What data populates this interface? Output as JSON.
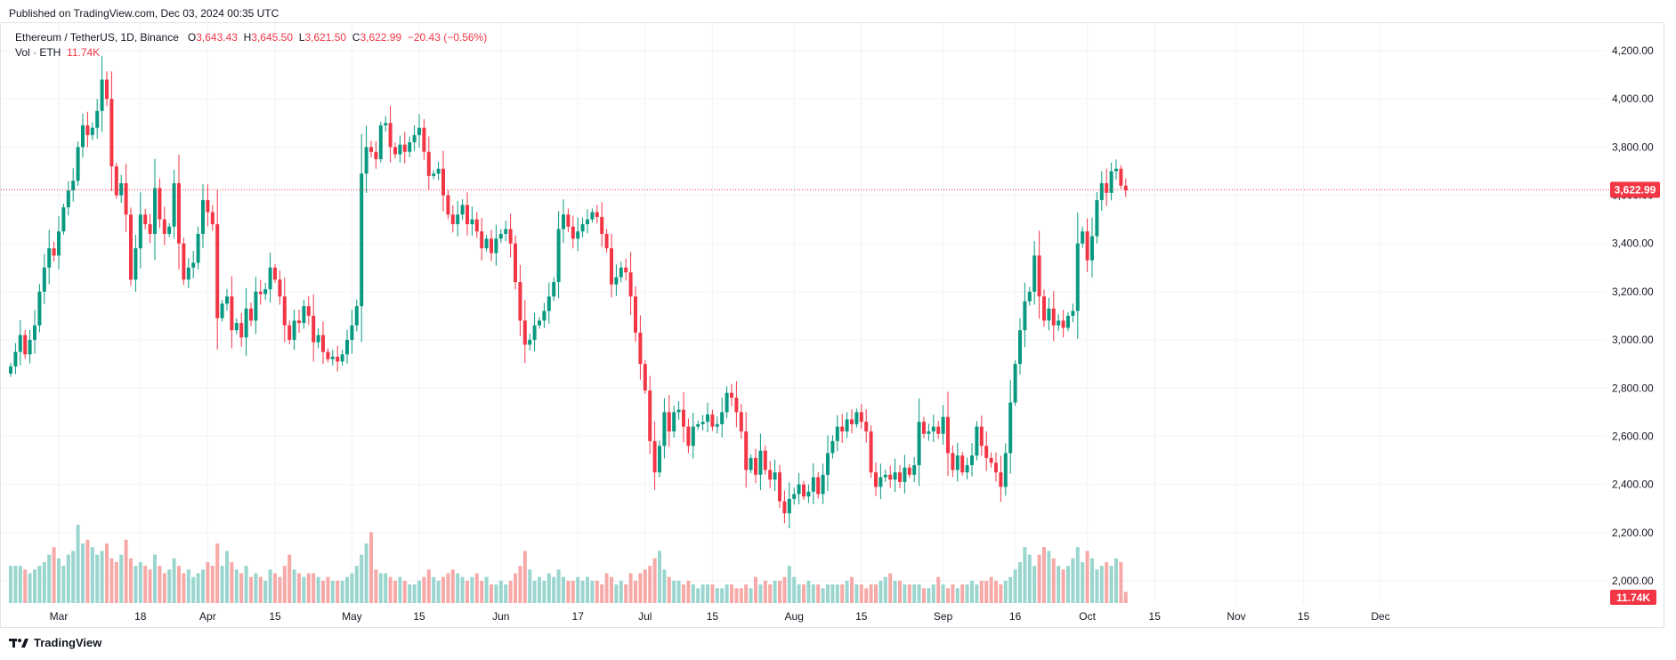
{
  "header": {
    "published": "Published on TradingView.com, Dec 03, 2024 00:35 UTC"
  },
  "legend": {
    "symbol": "Ethereum / TetherUS, 1D, Binance",
    "o_label": "O",
    "o_value": "3,643.43",
    "h_label": "H",
    "h_value": "3,645.50",
    "l_label": "L",
    "l_value": "3,621.50",
    "c_label": "C",
    "c_value": "3,622.99",
    "change": "−20.43 (−0.56%)",
    "vol_label": "Vol · ETH",
    "vol_value": "11.74K"
  },
  "footer": {
    "brand": "TradingView"
  },
  "colors": {
    "up": "#089981",
    "down": "#f23645",
    "vol_up": "#9ad6cf",
    "vol_down": "#f7a9a7",
    "grid": "#f0f3fa"
  },
  "chart_data": {
    "type": "candlestick",
    "title": "",
    "ylim": [
      2000,
      4250
    ],
    "y_ticks": [
      2000,
      2200,
      2400,
      2600,
      2800,
      3000,
      3200,
      3400,
      3600,
      3800,
      4000,
      4200
    ],
    "y_tick_labels": [
      "2,000.00",
      "2,200.00",
      "2,400.00",
      "2,600.00",
      "2,800.00",
      "3,000.00",
      "3,200.00",
      "3,400.00",
      "3,600.00",
      "3,800.00",
      "4,000.00",
      "4,200.00"
    ],
    "x_tick_labels": [
      "Mar",
      "18",
      "Apr",
      "15",
      "May",
      "15",
      "Jun",
      "17",
      "Jul",
      "15",
      "Aug",
      "15",
      "Sep",
      "16",
      "Oct",
      "15",
      "Nov",
      "15",
      "Dec"
    ],
    "x_tick_dates": [
      "2024-03-01",
      "2024-03-18",
      "2024-04-01",
      "2024-04-15",
      "2024-05-01",
      "2024-05-15",
      "2024-06-01",
      "2024-06-17",
      "2024-07-01",
      "2024-07-15",
      "2024-08-01",
      "2024-08-15",
      "2024-09-01",
      "2024-09-16",
      "2024-10-01",
      "2024-10-15",
      "2024-11-01",
      "2024-11-15",
      "2024-12-01"
    ],
    "start_date": "2024-02-20",
    "last_price": 3622.99,
    "last_price_label": "3,622.99",
    "last_volume_label": "11.74K",
    "closes": [
      2890,
      2950,
      3020,
      2940,
      3000,
      3060,
      3200,
      3300,
      3380,
      3350,
      3450,
      3550,
      3620,
      3660,
      3800,
      3890,
      3850,
      3880,
      3950,
      4080,
      4000,
      3720,
      3600,
      3650,
      3520,
      3250,
      3380,
      3520,
      3480,
      3440,
      3630,
      3500,
      3440,
      3470,
      3650,
      3400,
      3250,
      3300,
      3320,
      3440,
      3580,
      3530,
      3480,
      3090,
      3150,
      3180,
      3040,
      3070,
      3010,
      3130,
      3080,
      3200,
      3190,
      3210,
      3300,
      3250,
      3180,
      3060,
      3000,
      3080,
      3070,
      3140,
      3100,
      2990,
      3020,
      2950,
      2920,
      2930,
      2910,
      2940,
      3000,
      3060,
      3140,
      3690,
      3800,
      3780,
      3750,
      3890,
      3900,
      3800,
      3770,
      3810,
      3780,
      3820,
      3850,
      3880,
      3780,
      3680,
      3690,
      3710,
      3600,
      3520,
      3480,
      3520,
      3560,
      3480,
      3500,
      3450,
      3380,
      3420,
      3360,
      3420,
      3440,
      3460,
      3400,
      3240,
      3080,
      2980,
      3000,
      3060,
      3080,
      3120,
      3180,
      3240,
      3460,
      3520,
      3470,
      3420,
      3450,
      3480,
      3500,
      3530,
      3510,
      3440,
      3380,
      3230,
      3260,
      3300,
      3280,
      3180,
      3030,
      2900,
      2790,
      2580,
      2450,
      2560,
      2700,
      2620,
      2700,
      2710,
      2640,
      2560,
      2640,
      2650,
      2660,
      2690,
      2640,
      2650,
      2700,
      2780,
      2760,
      2700,
      2620,
      2460,
      2510,
      2440,
      2540,
      2460,
      2420,
      2450,
      2330,
      2280,
      2340,
      2360,
      2400,
      2350,
      2370,
      2430,
      2360,
      2440,
      2530,
      2580,
      2640,
      2620,
      2670,
      2650,
      2700,
      2660,
      2620,
      2450,
      2390,
      2430,
      2440,
      2420,
      2450,
      2410,
      2470,
      2440,
      2480,
      2660,
      2610,
      2620,
      2640,
      2610,
      2680,
      2530,
      2460,
      2520,
      2450,
      2480,
      2520,
      2640,
      2560,
      2510,
      2490,
      2450,
      2390,
      2530,
      2740,
      2900,
      3040,
      3160,
      3200,
      3350,
      3180,
      3080,
      3130,
      3060,
      3080,
      3050,
      3100,
      3120,
      3400,
      3450,
      3330,
      3430,
      3580,
      3650,
      3610,
      3700,
      3710,
      3640,
      3620
    ],
    "volumes": [
      1,
      1,
      1,
      0.9,
      0.8,
      0.9,
      1,
      1.1,
      1.3,
      1.5,
      1.2,
      1,
      1.3,
      1.4,
      2.1,
      1.6,
      1.7,
      1.5,
      1.3,
      1.4,
      1.6,
      1.2,
      1.1,
      1.3,
      1.7,
      1.2,
      1,
      1.1,
      1,
      0.9,
      1.3,
      1,
      0.8,
      0.9,
      1.2,
      1,
      0.8,
      0.9,
      0.7,
      0.8,
      0.9,
      1.1,
      1,
      1.6,
      1,
      1.4,
      1.1,
      0.9,
      0.8,
      1,
      0.7,
      0.8,
      0.7,
      0.6,
      0.9,
      0.8,
      0.7,
      1,
      1.3,
      0.9,
      0.8,
      0.7,
      0.8,
      0.8,
      0.7,
      0.6,
      0.7,
      0.6,
      0.6,
      0.6,
      0.7,
      0.8,
      1,
      1.3,
      1.6,
      1.9,
      0.9,
      0.8,
      0.8,
      0.7,
      0.6,
      0.7,
      0.6,
      0.5,
      0.5,
      0.6,
      0.7,
      0.9,
      0.7,
      0.6,
      0.7,
      0.8,
      0.9,
      0.8,
      0.7,
      0.6,
      0.7,
      0.8,
      0.6,
      0.7,
      0.5,
      0.5,
      0.6,
      0.5,
      0.6,
      0.8,
      1,
      1.4,
      0.9,
      0.6,
      0.7,
      0.6,
      0.8,
      0.7,
      0.9,
      0.7,
      0.6,
      0.6,
      0.7,
      0.6,
      0.7,
      0.6,
      0.6,
      0.5,
      0.8,
      0.7,
      0.5,
      0.6,
      0.5,
      0.8,
      0.6,
      0.8,
      0.9,
      1,
      1.2,
      1.4,
      0.9,
      0.7,
      0.6,
      0.6,
      0.5,
      0.6,
      0.5,
      0.4,
      0.5,
      0.5,
      0.5,
      0.4,
      0.4,
      0.5,
      0.5,
      0.4,
      0.4,
      0.5,
      0.4,
      0.7,
      0.5,
      0.6,
      0.5,
      0.6,
      0.6,
      0.7,
      1,
      0.7,
      0.5,
      0.5,
      0.6,
      0.5,
      0.5,
      0.4,
      0.5,
      0.5,
      0.5,
      0.5,
      0.6,
      0.7,
      0.5,
      0.5,
      0.4,
      0.5,
      0.5,
      0.6,
      0.7,
      0.8,
      0.6,
      0.6,
      0.5,
      0.5,
      0.5,
      0.5,
      0.4,
      0.4,
      0.5,
      0.7,
      0.5,
      0.4,
      0.5,
      0.4,
      0.5,
      0.5,
      0.6,
      0.5,
      0.6,
      0.6,
      0.7,
      0.6,
      0.5,
      0.6,
      0.7,
      0.9,
      1.1,
      1.5,
      1.3,
      1.0,
      1.3,
      1.5,
      1.4,
      1.2,
      1.0,
      0.9,
      1.0,
      1.2,
      1.5,
      1.1,
      1.4,
      1.2,
      0.9,
      1.0,
      1.1,
      1.0,
      1.2,
      1.1,
      0.3
    ]
  }
}
